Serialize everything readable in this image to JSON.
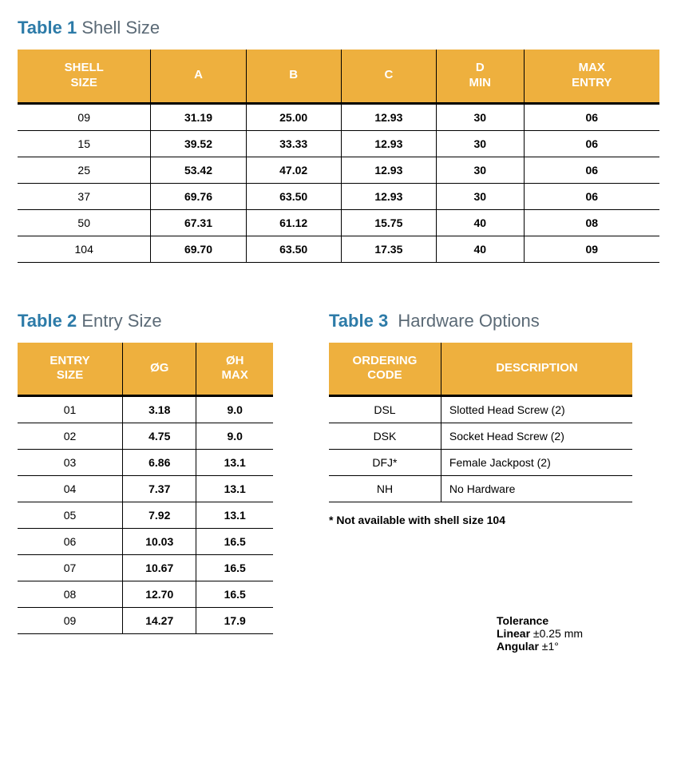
{
  "colors": {
    "header_bg": "#eeb03e",
    "header_text": "#ffffff",
    "title_accent": "#2d7ba8",
    "title_muted": "#5b6a76",
    "border": "#000000",
    "background": "#ffffff"
  },
  "table1": {
    "label": "Table 1",
    "name": "Shell Size",
    "columns": [
      "SHELL SIZE",
      "A",
      "B",
      "C",
      "D MIN",
      "MAX ENTRY"
    ],
    "rows": [
      [
        "09",
        "31.19",
        "25.00",
        "12.93",
        "30",
        "06"
      ],
      [
        "15",
        "39.52",
        "33.33",
        "12.93",
        "30",
        "06"
      ],
      [
        "25",
        "53.42",
        "47.02",
        "12.93",
        "30",
        "06"
      ],
      [
        "37",
        "69.76",
        "63.50",
        "12.93",
        "30",
        "06"
      ],
      [
        "50",
        "67.31",
        "61.12",
        "15.75",
        "40",
        "08"
      ],
      [
        "104",
        "69.70",
        "63.50",
        "17.35",
        "40",
        "09"
      ]
    ]
  },
  "table2": {
    "label": "Table 2",
    "name": "Entry Size",
    "columns": [
      "ENTRY SIZE",
      "ØG",
      "ØH MAX"
    ],
    "rows": [
      [
        "01",
        "3.18",
        "9.0"
      ],
      [
        "02",
        "4.75",
        "9.0"
      ],
      [
        "03",
        "6.86",
        "13.1"
      ],
      [
        "04",
        "7.37",
        "13.1"
      ],
      [
        "05",
        "7.92",
        "13.1"
      ],
      [
        "06",
        "10.03",
        "16.5"
      ],
      [
        "07",
        "10.67",
        "16.5"
      ],
      [
        "08",
        "12.70",
        "16.5"
      ],
      [
        "09",
        "14.27",
        "17.9"
      ]
    ]
  },
  "table3": {
    "label": "Table 3",
    "name": "Hardware Options",
    "columns": [
      "ORDERING CODE",
      "DESCRIPTION"
    ],
    "rows": [
      [
        "DSL",
        "Slotted Head Screw (2)"
      ],
      [
        "DSK",
        "Socket Head Screw (2)"
      ],
      [
        "DFJ*",
        "Female Jackpost (2)"
      ],
      [
        "NH",
        "No Hardware"
      ]
    ],
    "note": "* Not available with shell size 104"
  },
  "tolerance": {
    "title": "Tolerance",
    "linear_label": "Linear",
    "linear_value": "±0.25 mm",
    "angular_label": "Angular",
    "angular_value": "±1°"
  }
}
